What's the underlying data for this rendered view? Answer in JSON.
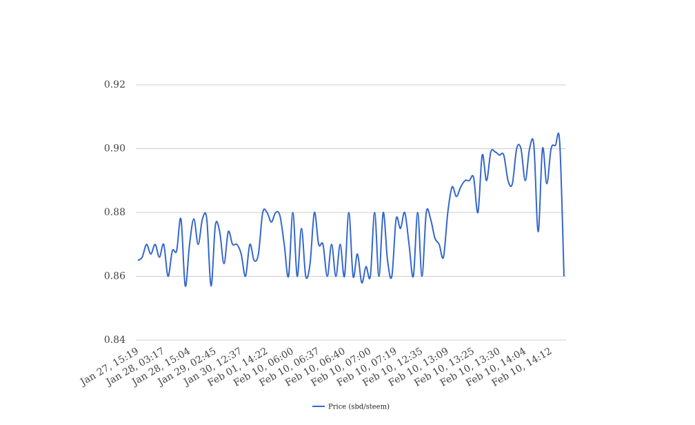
{
  "chart_data": {
    "type": "line",
    "categories": [
      "Jan 27, 15:19",
      null,
      null,
      null,
      null,
      null,
      "Jan 28, 03:17",
      null,
      null,
      null,
      null,
      null,
      "Jan 28, 15:04",
      null,
      null,
      null,
      null,
      null,
      "Jan 29, 02:45",
      null,
      null,
      null,
      null,
      null,
      "Jan 30, 12:37",
      null,
      null,
      null,
      null,
      null,
      "Feb 01, 14:22",
      null,
      null,
      null,
      null,
      null,
      "Feb 10, 06:00",
      null,
      null,
      null,
      null,
      null,
      "Feb 10, 06:37",
      null,
      null,
      null,
      null,
      null,
      "Feb 10, 06:40",
      null,
      null,
      null,
      null,
      null,
      "Feb 10, 07:00",
      null,
      null,
      null,
      null,
      null,
      "Feb 10, 07:19",
      null,
      null,
      null,
      null,
      null,
      "Feb 10, 12:35",
      null,
      null,
      null,
      null,
      null,
      "Feb 10, 13:09",
      null,
      null,
      null,
      null,
      null,
      "Feb 10, 13:25",
      null,
      null,
      null,
      null,
      null,
      "Feb 10, 13:30",
      null,
      null,
      null,
      null,
      null,
      "Feb 10, 14:04",
      null,
      null,
      null,
      null,
      null,
      "Feb 10, 14:12",
      null,
      null,
      null
    ],
    "series": [
      {
        "name": "Price (sbd/steem)",
        "color": "#3366cc",
        "values": [
          0.865,
          0.866,
          0.87,
          0.867,
          0.87,
          0.866,
          0.87,
          0.86,
          0.868,
          0.868,
          0.878,
          0.857,
          0.87,
          0.878,
          0.87,
          0.878,
          0.878,
          0.857,
          0.876,
          0.874,
          0.864,
          0.874,
          0.87,
          0.87,
          0.867,
          0.86,
          0.87,
          0.865,
          0.867,
          0.88,
          0.88,
          0.877,
          0.88,
          0.879,
          0.87,
          0.86,
          0.88,
          0.86,
          0.875,
          0.86,
          0.864,
          0.88,
          0.87,
          0.87,
          0.86,
          0.87,
          0.86,
          0.87,
          0.86,
          0.88,
          0.86,
          0.867,
          0.858,
          0.863,
          0.86,
          0.88,
          0.86,
          0.88,
          0.865,
          0.86,
          0.878,
          0.875,
          0.88,
          0.87,
          0.86,
          0.88,
          0.86,
          0.88,
          0.878,
          0.872,
          0.87,
          0.866,
          0.88,
          0.888,
          0.885,
          0.888,
          0.89,
          0.89,
          0.891,
          0.88,
          0.898,
          0.89,
          0.899,
          0.899,
          0.898,
          0.898,
          0.89,
          0.889,
          0.9,
          0.9,
          0.89,
          0.9,
          0.901,
          0.874,
          0.9,
          0.889,
          0.9,
          0.901,
          0.902,
          0.86
        ]
      }
    ],
    "ylim": [
      0.84,
      0.92
    ],
    "yticks": [
      {
        "value": 0.84,
        "label": "0.84"
      },
      {
        "value": 0.86,
        "label": "0.86"
      },
      {
        "value": 0.88,
        "label": "0.88"
      },
      {
        "value": 0.9,
        "label": "0.90"
      },
      {
        "value": 0.92,
        "label": "0.92"
      }
    ],
    "grid": true,
    "legend": "bottom"
  }
}
